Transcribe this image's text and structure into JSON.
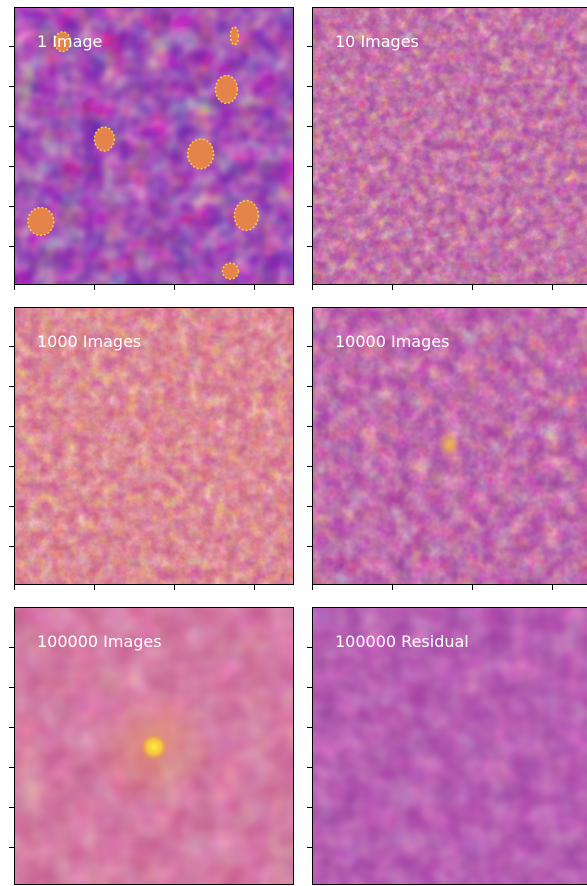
{
  "panels": [
    {
      "label": "1 Image",
      "noise": "blotchy",
      "base": "#7a2aa6",
      "spots": "#e0823a"
    },
    {
      "label": "10 Images",
      "noise": "fine",
      "base": "#b0479a",
      "spots": "#f09a3a"
    },
    {
      "label": "1000 Images",
      "noise": "fine",
      "base": "#c25a8e",
      "spots": "#f6a534"
    },
    {
      "label": "10000 Images",
      "noise": "smooth",
      "base": "#a43f9e",
      "spots": "#ee8a4a"
    },
    {
      "label": "100000 Images",
      "noise": "verysmooth",
      "base": "#bf5a8c",
      "spots": "#f3d13a"
    },
    {
      "label": "100000 Residual",
      "noise": "verysmooth",
      "base": "#9a3a9e",
      "spots": "#c2568a"
    }
  ],
  "colormap": "plasma"
}
